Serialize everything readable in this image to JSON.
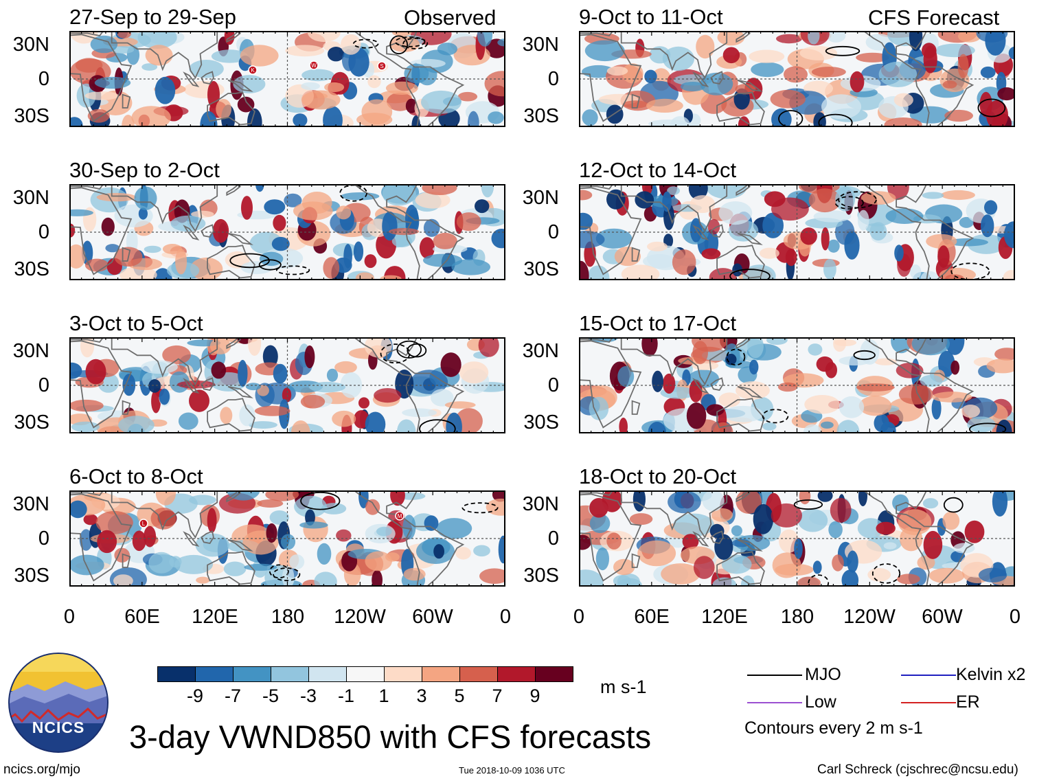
{
  "columns": {
    "left_label": "Observed",
    "right_label": "CFS Forecast"
  },
  "panels": {
    "left": [
      {
        "title": "27-Sep to 29-Sep",
        "storm_markers": [
          "K",
          "W",
          "S"
        ]
      },
      {
        "title": "30-Sep to 2-Oct",
        "storm_markers": []
      },
      {
        "title": "3-Oct to 5-Oct",
        "storm_markers": []
      },
      {
        "title": "6-Oct to 8-Oct",
        "storm_markers": [
          "L",
          "M"
        ]
      }
    ],
    "right": [
      {
        "title": "9-Oct to 11-Oct"
      },
      {
        "title": "12-Oct to 14-Oct"
      },
      {
        "title": "15-Oct to 17-Oct"
      },
      {
        "title": "18-Oct to 20-Oct"
      }
    ]
  },
  "axes": {
    "lat_labels": [
      "30N",
      "0",
      "30S"
    ],
    "lon_labels": [
      "0",
      "60E",
      "120E",
      "180",
      "120W",
      "60W",
      "0"
    ]
  },
  "colorbar": {
    "colors": [
      "#08306b",
      "#2166ac",
      "#4393c3",
      "#92c5de",
      "#d1e5f0",
      "#f7f7f7",
      "#fddbc7",
      "#f4a582",
      "#d6604d",
      "#b2182b",
      "#67001f"
    ],
    "tick_labels": [
      "-9",
      "-7",
      "-5",
      "-3",
      "-1",
      "1",
      "3",
      "5",
      "7",
      "9"
    ],
    "units": "m s-1"
  },
  "legend": {
    "items": [
      {
        "label": "MJO",
        "color": "#000000"
      },
      {
        "label": "Kelvin x2",
        "color": "#1f1fbf"
      },
      {
        "label": "Low",
        "color": "#9b4fd1"
      },
      {
        "label": "ER",
        "color": "#d42020"
      }
    ],
    "contour_note": "Contours every 2 m s-1"
  },
  "footer": {
    "logo_text": "NCICS",
    "main_title": "3-day VWND850 with CFS forecasts",
    "url": "ncics.org/mjo",
    "timestamp": "Tue 2018-10-09 1036 UTC",
    "credit": "Carl Schreck (cjschrec@ncsu.edu)"
  }
}
